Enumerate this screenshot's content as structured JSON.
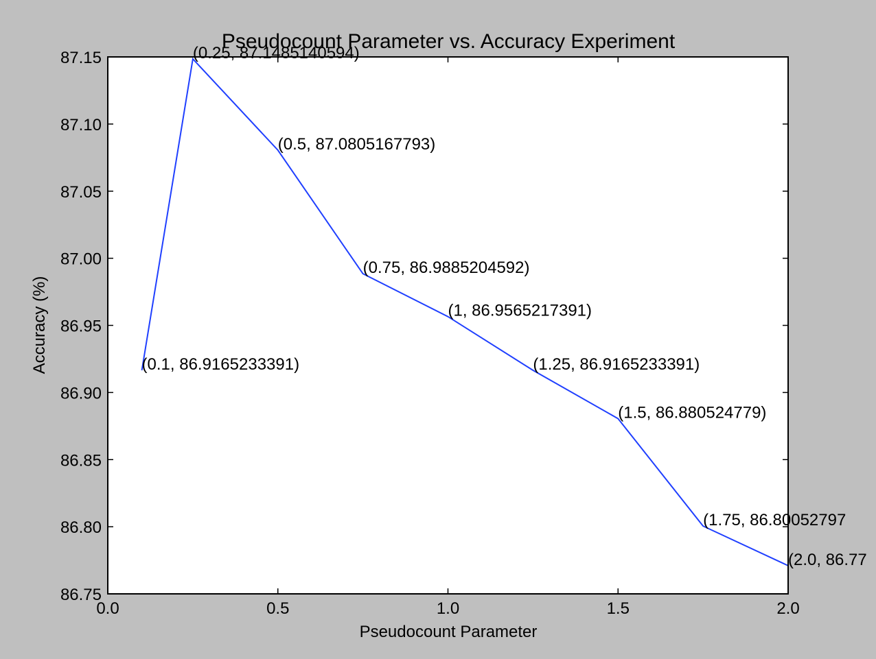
{
  "chart_data": {
    "type": "line",
    "title": "Pseudocount Parameter vs. Accuracy Experiment",
    "xlabel": "Pseudocount Parameter",
    "ylabel": "Accuracy (%)",
    "xlim": [
      0.0,
      2.0
    ],
    "ylim": [
      86.75,
      87.15
    ],
    "xticks": [
      "0.0",
      "0.5",
      "1.0",
      "1.5",
      "2.0"
    ],
    "yticks": [
      "86.75",
      "86.80",
      "86.85",
      "86.90",
      "86.95",
      "87.00",
      "87.05",
      "87.10",
      "87.15"
    ],
    "grid": false,
    "series": [
      {
        "color": "#1f3fff",
        "x": [
          0.1,
          0.25,
          0.5,
          0.75,
          1,
          1.25,
          1.5,
          1.75,
          2.0
        ],
        "y": [
          86.9165233391,
          87.1485140594,
          87.0805167793,
          86.9885204592,
          86.9565217391,
          86.9165233391,
          86.880524779,
          86.80052797,
          86.771
        ],
        "labels": [
          "(0.1, 86.9165233391)",
          "(0.25, 87.1485140594)",
          "(0.5, 87.0805167793)",
          "(0.75, 86.9885204592)",
          "(1, 86.9565217391)",
          "(1.25, 86.9165233391)",
          "(1.5, 86.880524779)",
          "(1.75, 86.80052797",
          "(2.0, 86.77"
        ]
      }
    ]
  }
}
